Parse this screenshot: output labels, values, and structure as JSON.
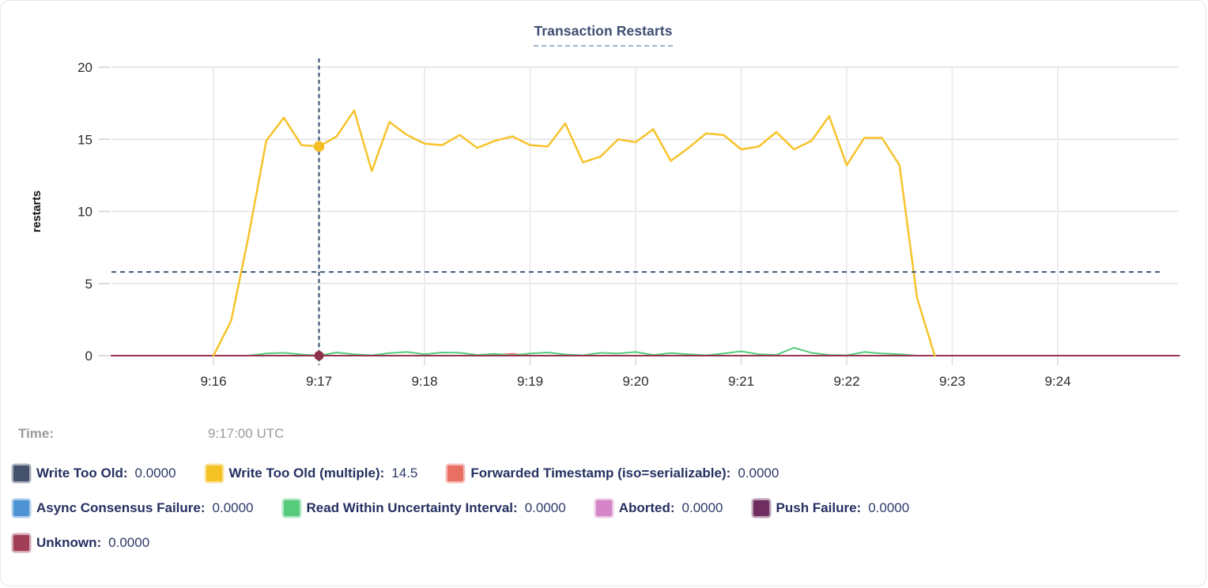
{
  "card": {
    "title": "Transaction Restarts"
  },
  "hover_readout": {
    "time_label": "Time:",
    "time_value": "9:17:00 UTC"
  },
  "legend": {
    "rows": [
      [
        {
          "name": "Write Too Old",
          "value": "0.0000",
          "color": "#44526B"
        },
        {
          "name": "Write Too Old (multiple)",
          "value": "14.5",
          "color": "#F5C226"
        },
        {
          "name": "Forwarded Timestamp (iso=serializable)",
          "value": "0.0000",
          "color": "#E96F63"
        }
      ],
      [
        {
          "name": "Async Consensus Failure",
          "value": "0.0000",
          "color": "#4E93D3"
        },
        {
          "name": "Read Within Uncertainty Interval",
          "value": "0.0000",
          "color": "#57CB7C"
        },
        {
          "name": "Aborted",
          "value": "0.0000",
          "color": "#D584C8"
        },
        {
          "name": "Push Failure",
          "value": "0.0000",
          "color": "#6F2D60"
        }
      ],
      [
        {
          "name": "Unknown",
          "value": "0.0000",
          "color": "#A23F58"
        }
      ]
    ]
  },
  "chart_data": {
    "type": "line",
    "title": "Transaction Restarts",
    "xlabel": "",
    "ylabel": "restarts",
    "ylim": [
      0,
      20
    ],
    "y_ticks": [
      0,
      5,
      10,
      15,
      20
    ],
    "x_ticks": [
      "9:16",
      "9:17",
      "9:18",
      "9:19",
      "9:20",
      "9:21",
      "9:22",
      "9:23",
      "9:24"
    ],
    "x_start": "9:15:02",
    "x_end": "9:25:09",
    "grid": true,
    "legend_position": "bottom",
    "crosshair": {
      "x": "9:17:00",
      "y_value": 5.8
    },
    "hover_points": [
      {
        "series": "Write Too Old (multiple)",
        "x": "9:17:00",
        "y": 14.5,
        "color": "#F5BE25"
      },
      {
        "series": "Unknown",
        "x": "9:17:00",
        "y": 0,
        "color": "#8E3249"
      }
    ],
    "series": [
      {
        "name": "Write Too Old",
        "color": "#44526B",
        "start": "9:15:02",
        "step_sec": 607,
        "values": [
          0,
          0
        ]
      },
      {
        "name": "Write Too Old (multiple)",
        "color": "#F7C32B",
        "start": "9:16:00",
        "step_sec": 10,
        "values": [
          0,
          2.4,
          8.3,
          14.9,
          16.5,
          14.6,
          14.5,
          15.2,
          17,
          12.8,
          16.2,
          15.3,
          14.7,
          14.6,
          15.3,
          14.4,
          14.9,
          15.2,
          14.6,
          14.5,
          16.1,
          13.4,
          13.8,
          15,
          14.8,
          15.7,
          13.5,
          14.4,
          15.4,
          15.3,
          14.3,
          14.5,
          15.5,
          14.3,
          14.9,
          16.6,
          13.2,
          15.1,
          15.1,
          13.2,
          4,
          0
        ]
      },
      {
        "name": "Forwarded Timestamp (iso=serializable)",
        "color": "#E96F63",
        "start": "9:16:00",
        "step_sec": 10,
        "values": [
          0,
          0,
          0,
          0,
          0,
          0,
          0,
          0,
          0,
          0,
          0,
          0,
          0,
          0,
          0,
          0,
          0.05,
          0.12,
          0,
          0,
          0,
          0,
          0,
          0,
          0,
          0,
          0,
          0,
          0,
          0,
          0,
          0,
          0,
          0,
          0,
          0,
          0,
          0,
          0,
          0,
          0,
          0
        ]
      },
      {
        "name": "Async Consensus Failure",
        "color": "#4E93D3",
        "start": "9:15:02",
        "step_sec": 607,
        "values": [
          0,
          0
        ]
      },
      {
        "name": "Read Within Uncertainty Interval",
        "color": "#57CB7C",
        "start": "9:16:20",
        "step_sec": 10,
        "values": [
          0,
          0.15,
          0.2,
          0.08,
          0,
          0.22,
          0.1,
          0.02,
          0.18,
          0.25,
          0.1,
          0.22,
          0.2,
          0.05,
          0.12,
          0.02,
          0.15,
          0.22,
          0.08,
          0.02,
          0.2,
          0.15,
          0.25,
          0.05,
          0.18,
          0.1,
          0.02,
          0.15,
          0.3,
          0.1,
          0.05,
          0.55,
          0.2,
          0.05,
          0.02,
          0.25,
          0.15,
          0.1,
          0
        ]
      },
      {
        "name": "Aborted",
        "color": "#D584C8",
        "start": "9:15:02",
        "step_sec": 607,
        "values": [
          0,
          0
        ]
      },
      {
        "name": "Push Failure",
        "color": "#6F2D60",
        "start": "9:15:02",
        "step_sec": 607,
        "values": [
          0,
          0
        ]
      },
      {
        "name": "Unknown",
        "color": "#993450",
        "start": "9:15:02",
        "step_sec": 607,
        "values": [
          0,
          0
        ]
      }
    ]
  }
}
